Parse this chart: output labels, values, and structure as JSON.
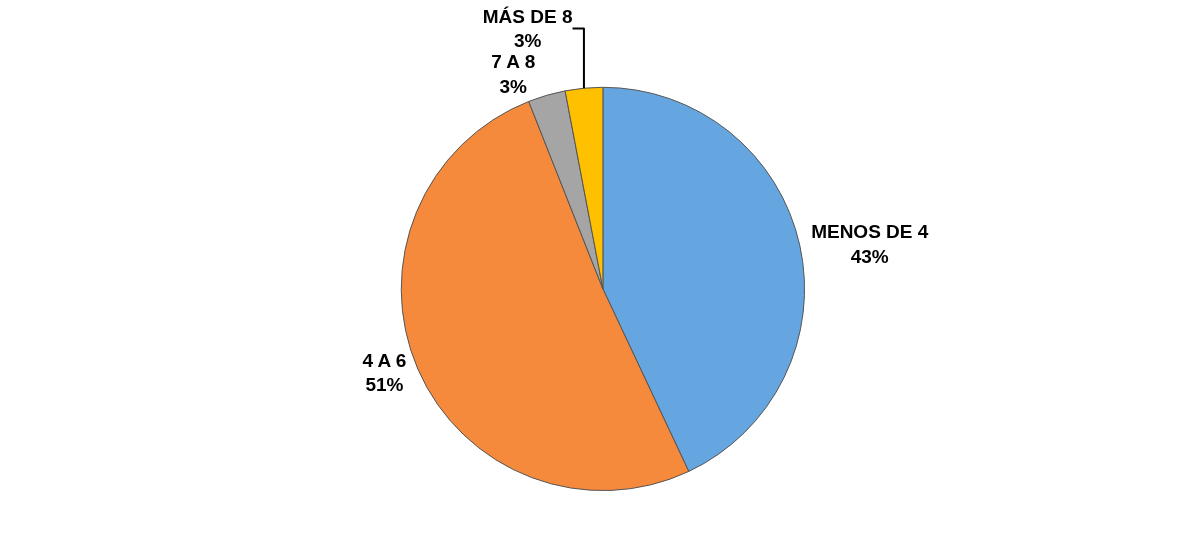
{
  "chart_data": {
    "type": "pie",
    "categories": [
      "MENOS DE 4",
      "4 A 6",
      "7 A 8",
      "MÁS DE 8"
    ],
    "values": [
      43,
      51,
      3,
      3
    ],
    "colors": [
      "#65a6e0",
      "#f58a3c",
      "#a5a5a5",
      "#ffc000"
    ],
    "value_labels": [
      "43%",
      "51%",
      "3%",
      "3%"
    ],
    "legend": false
  }
}
